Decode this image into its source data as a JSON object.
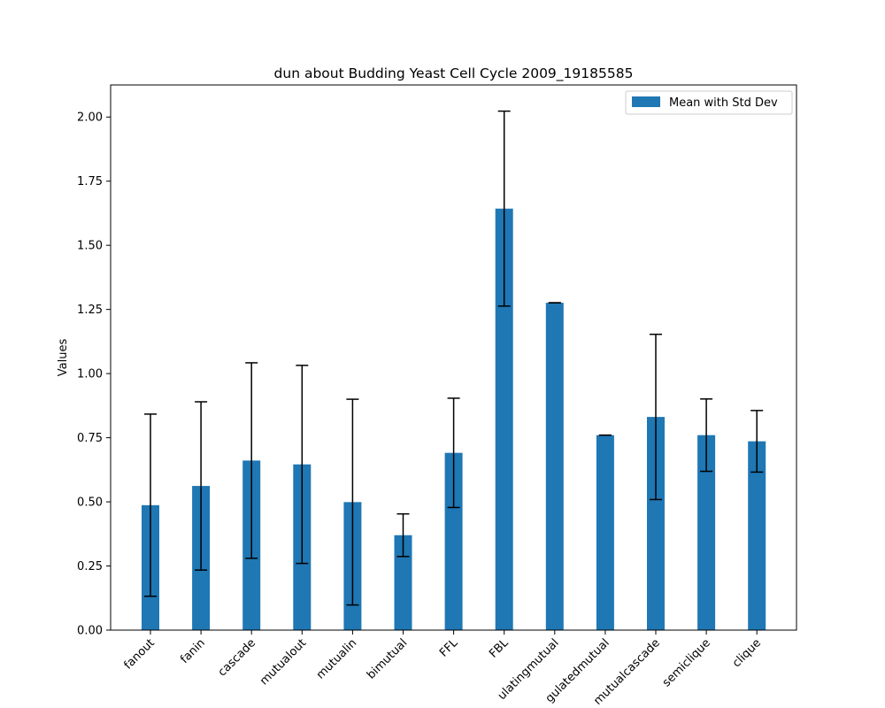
{
  "chart_data": {
    "type": "bar",
    "title": "dun about Budding Yeast Cell Cycle 2009_19185585",
    "xlabel": "",
    "ylabel": "Values",
    "ylim": [
      0,
      2.125
    ],
    "yticks": [
      0.0,
      0.25,
      0.5,
      0.75,
      1.0,
      1.25,
      1.5,
      1.75,
      2.0
    ],
    "ytick_labels": [
      "0.00",
      "0.25",
      "0.50",
      "0.75",
      "1.00",
      "1.25",
      "1.50",
      "1.75",
      "2.00"
    ],
    "categories": [
      "fanout",
      "fanin",
      "cascade",
      "mutualout",
      "mutualin",
      "bimutual",
      "FFL",
      "FBL",
      "regulatingmutual",
      "regulatedmutual",
      "mutualcascade",
      "semiclique",
      "clique"
    ],
    "category_labels_visible": [
      "fanout",
      "fanin",
      "cascade",
      "mutualout",
      "mutualin",
      "bimutual",
      "FFL",
      "FBL",
      "ulatingmutual",
      "gulatedmutual",
      "mutualcascade",
      "semiclique",
      "clique"
    ],
    "series": [
      {
        "name": "Mean with Std Dev",
        "color": "#1f77b4",
        "values": [
          0.487,
          0.562,
          0.661,
          0.646,
          0.499,
          0.37,
          0.691,
          1.643,
          1.276,
          0.76,
          0.831,
          0.76,
          0.736
        ],
        "errors": [
          0.355,
          0.328,
          0.381,
          0.386,
          0.401,
          0.083,
          0.213,
          0.38,
          0.0,
          0.0,
          0.322,
          0.141,
          0.12
        ]
      }
    ],
    "legend": {
      "placement": "top-right"
    },
    "grid": false
  }
}
